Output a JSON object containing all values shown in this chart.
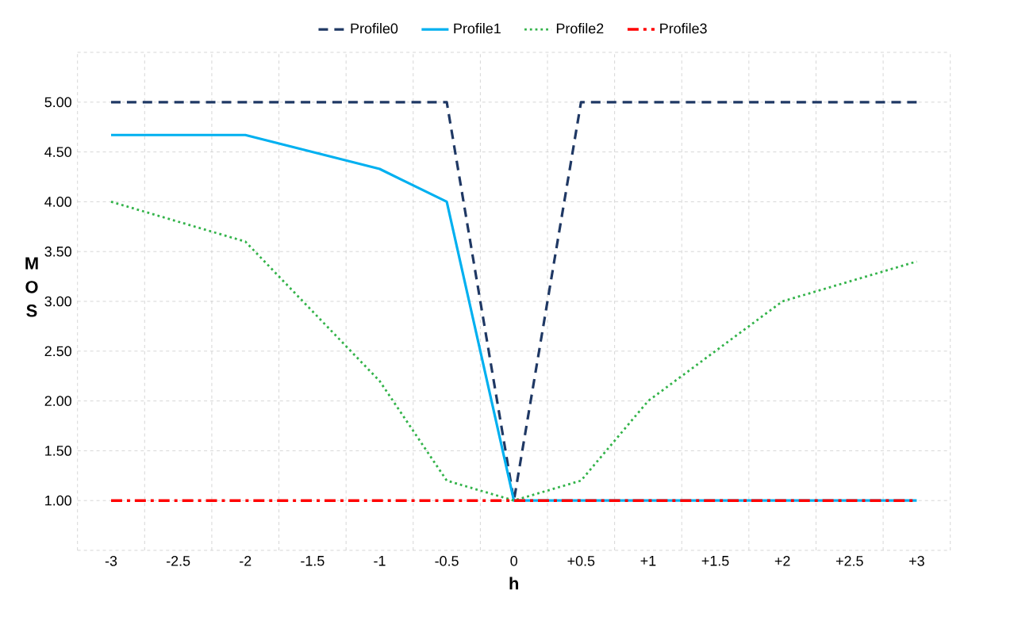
{
  "chart_data": {
    "type": "line",
    "xlabel": "h",
    "ylabel": "M O S",
    "categories": [
      "-3",
      "-2.5",
      "-2",
      "-1.5",
      "-1",
      "-0.5",
      "0",
      "+0.5",
      "+1",
      "+1.5",
      "+2",
      "+2.5",
      "+3"
    ],
    "series": [
      {
        "name": "Profile0",
        "color": "#1f3864",
        "line_style": "dashed",
        "values": [
          5,
          5,
          5,
          5,
          5,
          5,
          1,
          5,
          5,
          5,
          5,
          5,
          5
        ]
      },
      {
        "name": "Profile1",
        "color": "#00b0f0",
        "line_style": "solid",
        "values": [
          4.67,
          4.67,
          4.67,
          4.5,
          4.33,
          4.0,
          1,
          1,
          1,
          1,
          1,
          1,
          1
        ]
      },
      {
        "name": "Profile2",
        "color": "#33b34a",
        "line_style": "dotted",
        "values": [
          4.0,
          3.8,
          3.6,
          2.9,
          2.2,
          1.2,
          1.0,
          1.2,
          2.0,
          2.5,
          3.0,
          3.2,
          3.4
        ]
      },
      {
        "name": "Profile3",
        "color": "#ff0000",
        "line_style": "dashdot",
        "values": [
          1,
          1,
          1,
          1,
          1,
          1,
          1,
          1,
          1,
          1,
          1,
          1,
          1
        ]
      }
    ],
    "ylim": [
      0.5,
      5.5
    ],
    "yticks": [
      {
        "value": 0.5,
        "label": null
      },
      {
        "value": 1,
        "label": "1.00"
      },
      {
        "value": 1.5,
        "label": "1.50"
      },
      {
        "value": 2,
        "label": "2.00"
      },
      {
        "value": 2.5,
        "label": "2.50"
      },
      {
        "value": 3,
        "label": "3.00"
      },
      {
        "value": 3.5,
        "label": "3.50"
      },
      {
        "value": 4,
        "label": "4.00"
      },
      {
        "value": 4.5,
        "label": "4.50"
      },
      {
        "value": 5,
        "label": "5.00"
      },
      {
        "value": 5.5,
        "label": null
      }
    ],
    "grid": true,
    "legend": "top",
    "marker": "none"
  }
}
